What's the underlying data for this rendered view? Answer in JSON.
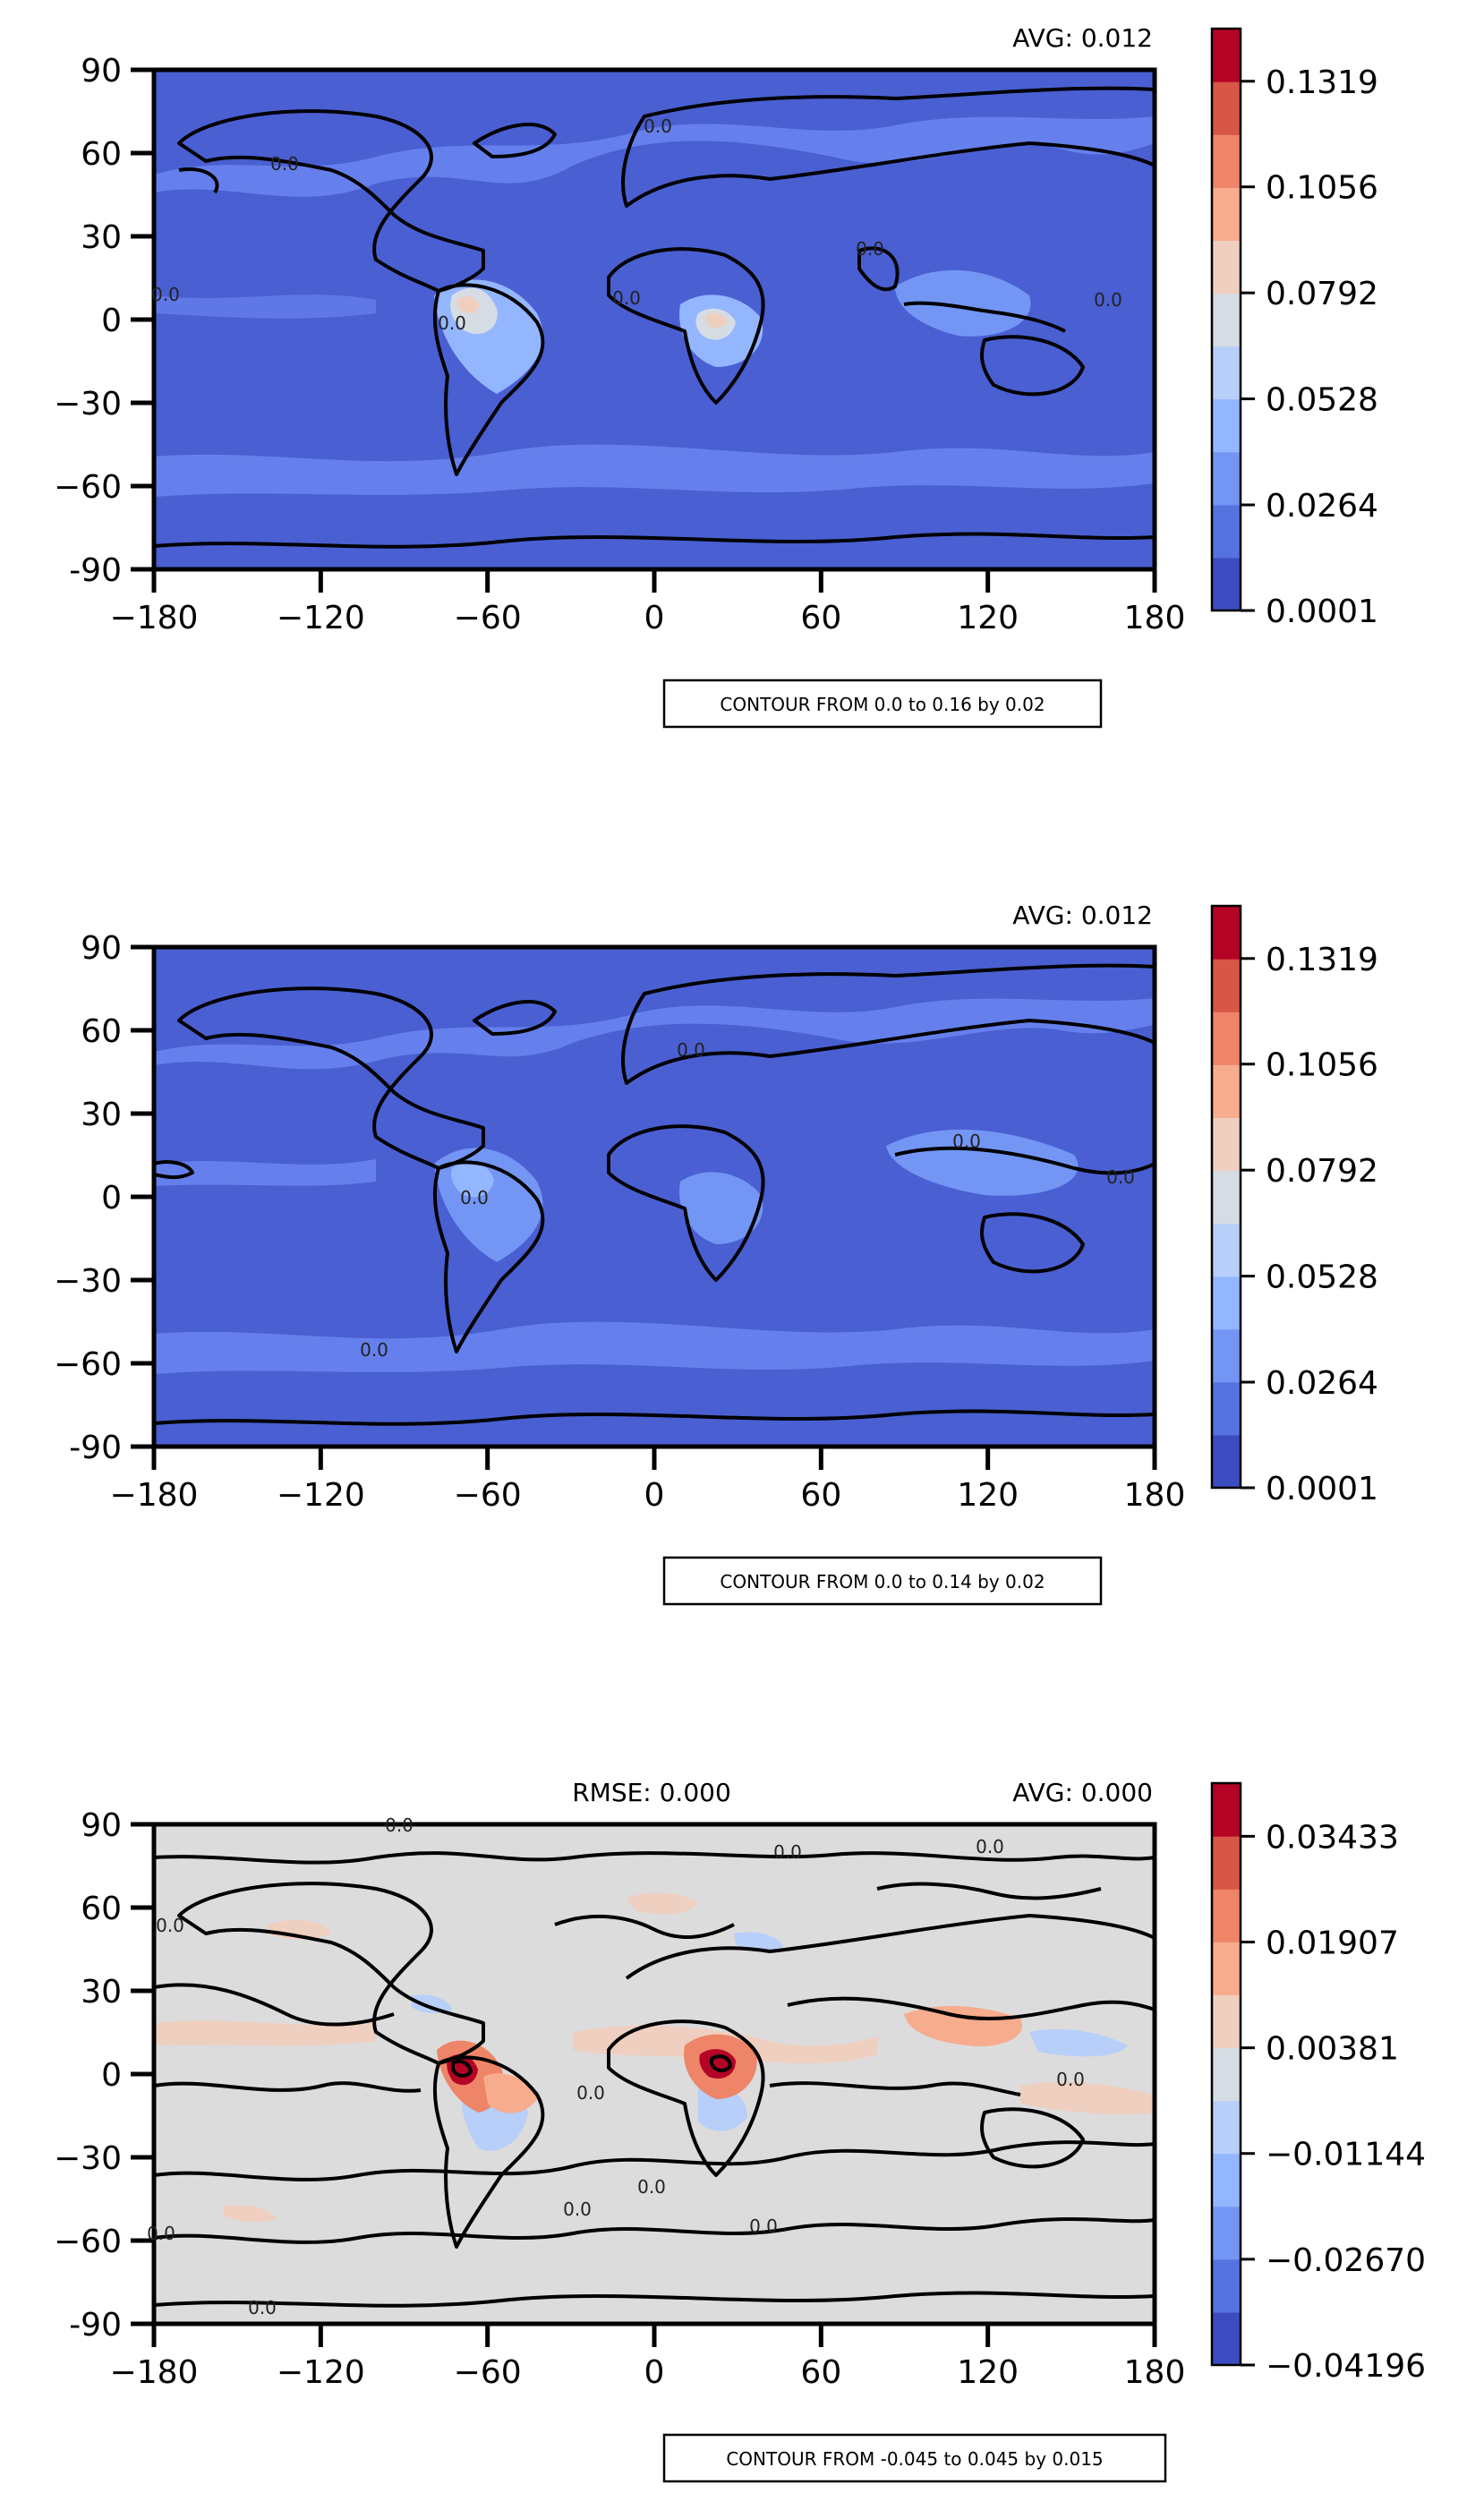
{
  "chart_data": [
    {
      "type": "heatmap",
      "subtype": "global-contour-map",
      "avg_label": "AVG: 0.012",
      "contour_note": "CONTOUR FROM 0.0 to 0.16 by 0.02",
      "xticks": [
        "−180",
        "−120",
        "−60",
        "0",
        "60",
        "120",
        "180"
      ],
      "yticks": [
        "90",
        "60",
        "30",
        "0",
        "−30",
        "−60",
        "-90"
      ],
      "xlim": [
        -180,
        180
      ],
      "ylim": [
        -90,
        90
      ],
      "colorbar_ticks": [
        "0.1319",
        "0.1056",
        "0.0792",
        "0.0528",
        "0.0264",
        "0.0001"
      ],
      "colorbar_range": [
        0.0001,
        0.145
      ],
      "contour_labels": [
        "0.0",
        "0.0",
        "0.0",
        "0.0",
        "0.0",
        "0.0",
        "0.0"
      ],
      "colors": [
        "#3b4cc0",
        "#5572df",
        "#7396f5",
        "#94b6ff",
        "#b7cff9",
        "#d6dce4",
        "#efcfbf",
        "#f7ac8e",
        "#ee8468",
        "#d85646",
        "#b40426"
      ]
    },
    {
      "type": "heatmap",
      "subtype": "global-contour-map",
      "avg_label": "AVG: 0.012",
      "contour_note": "CONTOUR FROM 0.0 to 0.14 by 0.02",
      "xticks": [
        "−180",
        "−120",
        "−60",
        "0",
        "60",
        "120",
        "180"
      ],
      "yticks": [
        "90",
        "60",
        "30",
        "0",
        "−30",
        "−60",
        "-90"
      ],
      "xlim": [
        -180,
        180
      ],
      "ylim": [
        -90,
        90
      ],
      "colorbar_ticks": [
        "0.1319",
        "0.1056",
        "0.0792",
        "0.0528",
        "0.0264",
        "0.0001"
      ],
      "colorbar_range": [
        0.0001,
        0.145
      ],
      "contour_labels": [
        "0.0",
        "0.0",
        "0.0",
        "0.0",
        "0.0"
      ],
      "colors": [
        "#3b4cc0",
        "#5572df",
        "#7396f5",
        "#94b6ff",
        "#b7cff9",
        "#d6dce4",
        "#efcfbf",
        "#f7ac8e",
        "#ee8468",
        "#d85646",
        "#b40426"
      ]
    },
    {
      "type": "heatmap",
      "subtype": "global-contour-map-difference",
      "rmse_label": "RMSE: 0.000",
      "avg_label": "AVG: 0.000",
      "contour_note": "CONTOUR FROM -0.045 to 0.045 by 0.015",
      "xticks": [
        "−180",
        "−120",
        "−60",
        "0",
        "60",
        "120",
        "180"
      ],
      "yticks": [
        "90",
        "60",
        "30",
        "0",
        "−30",
        "−60",
        "-90"
      ],
      "xlim": [
        -180,
        180
      ],
      "ylim": [
        -90,
        90
      ],
      "colorbar_ticks": [
        "0.03433",
        "0.01907",
        "0.00381",
        "−0.01144",
        "−0.02670",
        "−0.04196"
      ],
      "colorbar_range": [
        -0.04196,
        0.042
      ],
      "contour_labels": [
        "0.0",
        "0.0",
        "0.0",
        "0.0",
        "0.0",
        "0.0",
        "0.0",
        "0.0",
        "0.0",
        "0.0",
        "0.0"
      ],
      "colors": [
        "#3b4cc0",
        "#5572df",
        "#7396f5",
        "#94b6ff",
        "#b7cff9",
        "#d6dce4",
        "#efcfbf",
        "#f7ac8e",
        "#ee8468",
        "#d85646",
        "#b40426"
      ]
    }
  ]
}
